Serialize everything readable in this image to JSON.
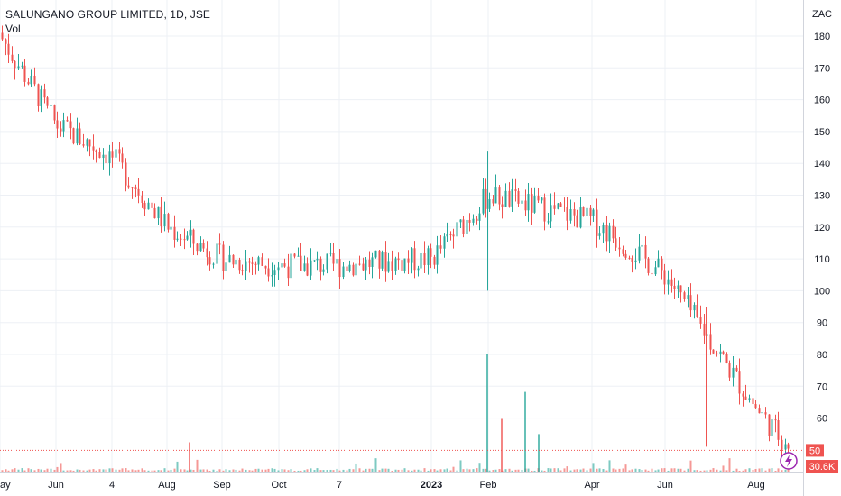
{
  "header": {
    "symbol_title": "SALUNGANO GROUP LIMITED, 1D, JSE",
    "volume_label": "Vol"
  },
  "price_axis": {
    "currency": "ZAC",
    "ticks": [
      "180",
      "170",
      "160",
      "150",
      "140",
      "130",
      "120",
      "110",
      "100",
      "90",
      "80",
      "70",
      "60"
    ],
    "last_price_label": "50",
    "last_volume_label": "30.6K"
  },
  "time_axis": {
    "ticks": [
      "ay",
      "Jun",
      "4",
      "Aug",
      "Sep",
      "Oct",
      "7",
      "2023",
      "Feb",
      "Apr",
      "Jun",
      "Aug"
    ],
    "bold_tick": "2023"
  },
  "colors": {
    "up": "#26a69a",
    "down": "#ef5350",
    "grid": "#edf0f5",
    "last_price": "#ef5350",
    "volume_badge": "#ef5350"
  },
  "icons": {
    "badge": "lightning-icon"
  },
  "chart_data": {
    "type": "candlestick",
    "title": "SALUNGANO GROUP LIMITED, 1D, JSE",
    "currency": "ZAC",
    "interval": "1D",
    "exchange": "JSE",
    "ylim": [
      50,
      185
    ],
    "grid": true,
    "approx_period": "May 2022 - Aug 2023",
    "last_price": 50,
    "last_volume": "30.6K",
    "close_anchors": [
      {
        "x": "May",
        "close": 180
      },
      {
        "x": "Jun",
        "close": 152
      },
      {
        "x": "4",
        "close": 142
      },
      {
        "x": "Aug",
        "close": 120
      },
      {
        "x": "Sep",
        "close": 110
      },
      {
        "x": "Oct",
        "close": 108
      },
      {
        "x": "7",
        "close": 108
      },
      {
        "x": "2023",
        "close": 110
      },
      {
        "x": "Feb",
        "close": 130
      },
      {
        "x": "Apr",
        "close": 122
      },
      {
        "x": "Jun",
        "close": 105
      },
      {
        "x": "Aug",
        "close": 63
      }
    ],
    "notable_candles": [
      {
        "x": "4",
        "high": 174,
        "low": 101
      },
      {
        "x": "Feb",
        "high": 144,
        "low": 100
      },
      {
        "x": "Jun",
        "high": 95,
        "low": 51
      }
    ],
    "notable_volume_spikes": [
      {
        "x": "Feb",
        "relative": 1.0
      },
      {
        "x": "Feb",
        "relative": 0.68
      },
      {
        "x": "Feb",
        "relative": 0.45
      },
      {
        "x": "Feb",
        "relative": 0.32
      },
      {
        "x": "Aug",
        "relative": 0.25
      }
    ]
  }
}
